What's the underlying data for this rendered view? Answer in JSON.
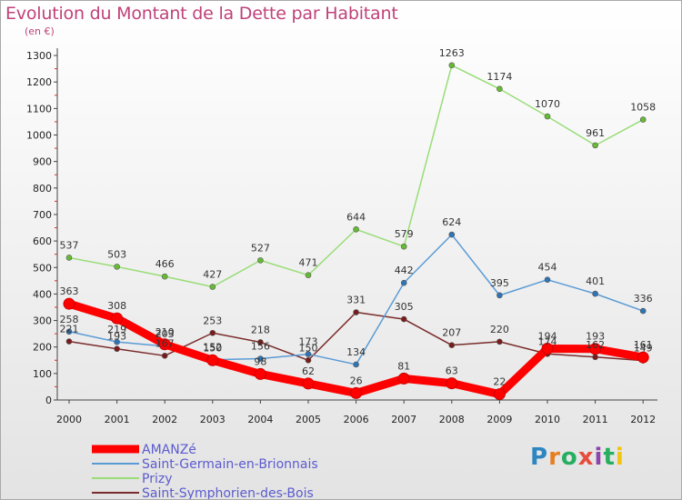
{
  "header": {
    "title": "Evolution du Montant de la Dette par Habitant",
    "subtitle": "(en €)"
  },
  "brand": {
    "text": "Proxiti",
    "letter_colors": [
      "#2e86c1",
      "#e67e22",
      "#27ae60",
      "#e74c3c",
      "#8e44ad",
      "#27ae60",
      "#f1c40f"
    ]
  },
  "chart_data": {
    "type": "line",
    "title": "Evolution du Montant de la Dette par Habitant",
    "ylabel": "(en €)",
    "xlabel": "",
    "categories": [
      "2000",
      "2001",
      "2002",
      "2003",
      "2004",
      "2005",
      "2006",
      "2007",
      "2008",
      "2009",
      "2010",
      "2011",
      "2012"
    ],
    "ylim": [
      0,
      1300
    ],
    "yticks": [
      0,
      100,
      200,
      300,
      400,
      500,
      600,
      700,
      800,
      900,
      1000,
      1100,
      1200,
      1300
    ],
    "grid": false,
    "legend_position": "bottom-left",
    "series": [
      {
        "name": "Saint-Symphorien-des-Bois",
        "color": "#7a2b2b",
        "marker": "#7a1a1a",
        "values": [
          221,
          193,
          167,
          253,
          218,
          150,
          331,
          305,
          207,
          220,
          174,
          162,
          149
        ]
      },
      {
        "name": "Saint-Germain-en-Brionnais",
        "color": "#5b9bd5",
        "marker": "#2e75b6",
        "values": [
          258,
          219,
          203,
          152,
          156,
          173,
          134,
          442,
          624,
          395,
          454,
          401,
          336
        ]
      },
      {
        "name": "Prizy",
        "color": "#99dd77",
        "marker": "#66bb33",
        "values": [
          537,
          503,
          466,
          427,
          527,
          471,
          644,
          579,
          1263,
          1174,
          1070,
          961,
          1058
        ]
      },
      {
        "name": "AMANZé",
        "color": "#ff0000",
        "marker": "#ff0000",
        "values": [
          363,
          308,
          210,
          150,
          98,
          62,
          26,
          81,
          63,
          22,
          194,
          193,
          161
        ]
      }
    ],
    "legend_order": [
      "AMANZé",
      "Saint-Germain-en-Brionnais",
      "Prizy",
      "Saint-Symphorien-des-Bois"
    ]
  }
}
